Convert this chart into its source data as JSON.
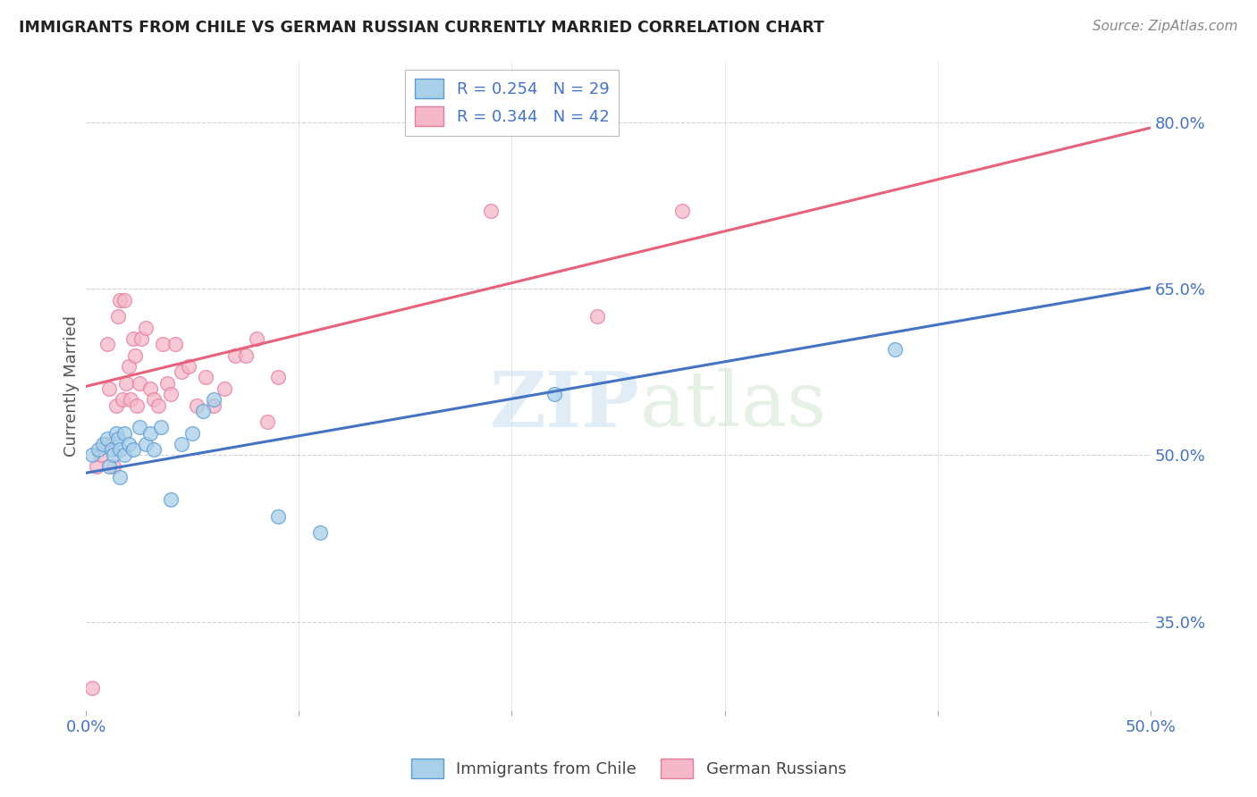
{
  "title": "IMMIGRANTS FROM CHILE VS GERMAN RUSSIAN CURRENTLY MARRIED CORRELATION CHART",
  "source_text": "Source: ZipAtlas.com",
  "ylabel": "Currently Married",
  "xlim": [
    0.0,
    0.5
  ],
  "ylim": [
    0.27,
    0.855
  ],
  "ytick_labels": [
    "35.0%",
    "50.0%",
    "65.0%",
    "80.0%"
  ],
  "ytick_positions": [
    0.35,
    0.5,
    0.65,
    0.8
  ],
  "xtick_positions": [
    0.0,
    0.1,
    0.2,
    0.3,
    0.4,
    0.5
  ],
  "xtick_labels": [
    "0.0%",
    "",
    "",
    "",
    "",
    "50.0%"
  ],
  "legend_entry1": "R = 0.254   N = 29",
  "legend_entry2": "R = 0.344   N = 42",
  "legend_label1": "Immigrants from Chile",
  "legend_label2": "German Russians",
  "color_blue": "#a8d0e8",
  "color_pink": "#f4b8c8",
  "color_blue_edge": "#5b9bd5",
  "color_pink_edge": "#e87aa0",
  "color_blue_line": "#4472c4",
  "color_pink_line": "#e8607a",
  "blue_points_x": [
    0.003,
    0.006,
    0.008,
    0.01,
    0.011,
    0.012,
    0.013,
    0.014,
    0.015,
    0.016,
    0.016,
    0.018,
    0.018,
    0.02,
    0.022,
    0.025,
    0.028,
    0.03,
    0.032,
    0.035,
    0.04,
    0.045,
    0.05,
    0.055,
    0.06,
    0.09,
    0.11,
    0.22,
    0.38
  ],
  "blue_points_y": [
    0.5,
    0.505,
    0.51,
    0.515,
    0.49,
    0.505,
    0.5,
    0.52,
    0.515,
    0.505,
    0.48,
    0.52,
    0.5,
    0.51,
    0.505,
    0.525,
    0.51,
    0.52,
    0.505,
    0.525,
    0.46,
    0.51,
    0.52,
    0.54,
    0.55,
    0.445,
    0.43,
    0.555,
    0.595
  ],
  "pink_points_x": [
    0.003,
    0.005,
    0.007,
    0.009,
    0.01,
    0.011,
    0.013,
    0.014,
    0.015,
    0.016,
    0.017,
    0.018,
    0.019,
    0.02,
    0.021,
    0.022,
    0.023,
    0.024,
    0.025,
    0.026,
    0.028,
    0.03,
    0.032,
    0.034,
    0.036,
    0.038,
    0.04,
    0.042,
    0.045,
    0.048,
    0.052,
    0.056,
    0.06,
    0.065,
    0.07,
    0.075,
    0.08,
    0.085,
    0.09,
    0.19,
    0.24,
    0.28
  ],
  "pink_points_y": [
    0.29,
    0.49,
    0.5,
    0.51,
    0.6,
    0.56,
    0.49,
    0.545,
    0.625,
    0.64,
    0.55,
    0.64,
    0.565,
    0.58,
    0.55,
    0.605,
    0.59,
    0.545,
    0.565,
    0.605,
    0.615,
    0.56,
    0.55,
    0.545,
    0.6,
    0.565,
    0.555,
    0.6,
    0.575,
    0.58,
    0.545,
    0.57,
    0.545,
    0.56,
    0.59,
    0.59,
    0.605,
    0.53,
    0.57,
    0.72,
    0.625,
    0.72
  ],
  "blue_line_x": [
    0.0,
    0.5
  ],
  "blue_line_y": [
    0.484,
    0.651
  ],
  "pink_line_x": [
    0.0,
    0.5
  ],
  "pink_line_y": [
    0.562,
    0.795
  ]
}
